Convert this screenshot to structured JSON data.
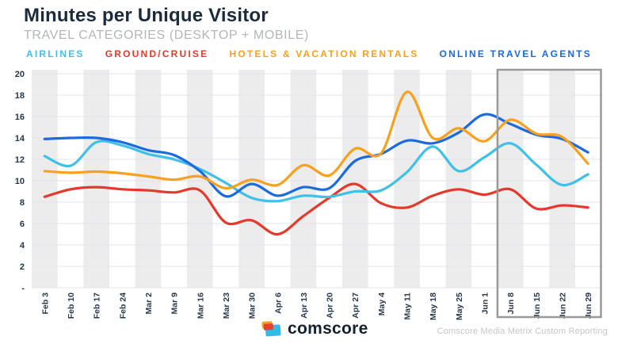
{
  "header": {
    "title": "Minutes per Unique Visitor",
    "subtitle": "TRAVEL CATEGORIES (DESKTOP + MOBILE)"
  },
  "chart_data": {
    "type": "line",
    "categories": [
      "Feb 3",
      "Feb 10",
      "Feb 17",
      "Feb 24",
      "Mar 2",
      "Mar 9",
      "Mar 16",
      "Mar 23",
      "Mar 30",
      "Apr 6",
      "Apr 13",
      "Apr 20",
      "Apr 27",
      "May 4",
      "May 11",
      "May 18",
      "May 25",
      "Jun 1",
      "Jun 8",
      "Jun 15",
      "Jun 22",
      "Jun 29"
    ],
    "series": [
      {
        "name": "AIRLINES",
        "color": "#3fc0e8",
        "values": [
          12.3,
          11.4,
          13.6,
          13.3,
          12.5,
          12.0,
          11.1,
          9.8,
          8.4,
          8.1,
          8.6,
          8.5,
          9.0,
          9.1,
          10.8,
          13.2,
          10.9,
          12.2,
          13.5,
          11.5,
          9.6,
          10.6
        ]
      },
      {
        "name": "GROUND/CRUISE",
        "color": "#e33a2c",
        "values": [
          8.5,
          9.2,
          9.4,
          9.2,
          9.1,
          8.9,
          9.1,
          6.1,
          6.3,
          5.0,
          6.7,
          8.4,
          9.7,
          7.9,
          7.5,
          8.6,
          9.2,
          8.7,
          9.2,
          7.4,
          7.7,
          7.5
        ]
      },
      {
        "name": "HOTELS & VACATION RENTALS",
        "color": "#f9a01e",
        "values": [
          10.9,
          10.75,
          10.85,
          10.7,
          10.4,
          10.1,
          10.4,
          9.3,
          10.1,
          9.6,
          11.45,
          10.5,
          13.0,
          12.55,
          18.3,
          14.0,
          14.9,
          13.7,
          15.7,
          14.4,
          14.1,
          11.6
        ]
      },
      {
        "name": "ONLINE TRAVEL AGENTS",
        "color": "#1b6ae0",
        "values": [
          13.9,
          14.0,
          14.0,
          13.6,
          12.85,
          12.4,
          10.9,
          8.55,
          9.7,
          8.6,
          9.4,
          9.3,
          11.85,
          12.5,
          13.75,
          13.5,
          14.5,
          16.2,
          15.3,
          14.3,
          13.9,
          12.65
        ]
      }
    ],
    "ylim": [
      0,
      20
    ],
    "yticks": [
      {
        "v": 20,
        "label": "20"
      },
      {
        "v": 18,
        "label": "18"
      },
      {
        "v": 16,
        "label": "16"
      },
      {
        "v": 14,
        "label": "14"
      },
      {
        "v": 12,
        "label": "12"
      },
      {
        "v": 10,
        "label": "10"
      },
      {
        "v": 8,
        "label": "8"
      },
      {
        "v": 6,
        "label": "6"
      },
      {
        "v": 4,
        "label": "4"
      },
      {
        "v": 2,
        "label": "2"
      },
      {
        "v": 0,
        "label": "-"
      }
    ],
    "grid": true,
    "banded_columns": "alternating, first column shaded",
    "x_labels_rotated_degrees": 90,
    "legend_position": "top",
    "highlight_range": {
      "start_category": "Jun 8",
      "end_category": "Jun 29"
    },
    "colors": {
      "band": "#ececec",
      "grid": "#e3e3eb",
      "highlight_border": "#999999"
    }
  },
  "footer": {
    "logo_text": "comscore",
    "source_text": "Comscore Media Metrix Custom Reporting"
  }
}
